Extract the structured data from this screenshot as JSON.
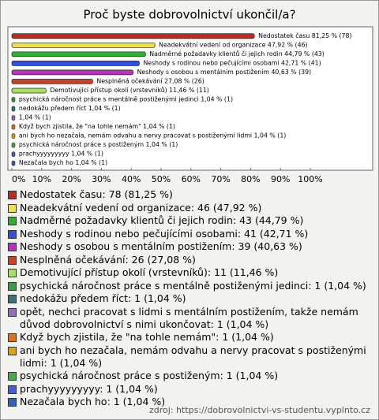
{
  "chart_data": {
    "type": "barh",
    "title": "Proč byste dobrovolnictví ukončil/a?",
    "values": [
      81.25,
      47.92,
      44.79,
      42.71,
      40.63,
      27.08,
      11.46,
      1.04,
      1.04,
      1.04,
      1.04,
      1.04,
      1.04,
      1.04,
      1.04
    ],
    "value_labels": [
      "Nedostatek času 81,25 % (78)",
      "Neadekvátní vedení od organizace 47,92 % (46)",
      "Nadměrné požadavky klientů či jejich rodin 44,79 % (43)",
      "Neshody s rodinou nebo pečujícími osobami 42,71 % (41)",
      "Neshody s osobou s mentálním postižením 40,63 % (39)",
      "Nesplněná očekávání 27,08 % (26)",
      "Demotivující přístup okolí (vrstevníků) 11,46 % (11)",
      "psychická náročnost práce s mentálně postiženými jedinci 1,04 % (1)",
      "nedokážu předem říct 1,04 % (1)",
      "1,04 % (1)",
      "Když bych zjistila, že \"na tohle nemám\" 1,04 % (1)",
      "ani bych ho nezačala, nemám odvahu a nervy pracovat s postiženými lidmi 1,04 % (1)",
      "psychická náročnost práce s postiženým 1,04 % (1)",
      "prachyyyyyyyyy 1,04 % (1)",
      "Nezačala bych ho 1,04 % (1)"
    ],
    "legend_labels": [
      "Nedostatek času: 78 (81,25 %)",
      "Neadekvátní vedení od organizace: 46 (47,92 %)",
      "Nadměrné požadavky klientů či jejich rodin: 43 (44,79 %)",
      "Neshody s rodinou nebo pečujícími osobami: 41 (42,71 %)",
      "Neshody s osobou s mentálním postižením: 39 (40,63 %)",
      "Nesplněná očekávání: 26 (27,08 %)",
      "Demotivující přístup okolí (vrstevníků): 11 (11,46 %)",
      "psychická náročnost práce s mentálně postiženými jedinci: 1 (1,04 %)",
      "nedokážu předem říct: 1 (1,04 %)",
      "opět, nechci pracovat s lidmi s mentálním postižením, takže nemám důvod dobrovolnictví s nimi ukončovat: 1 (1,04 %)",
      "Když bych zjistila, že \"na tohle nemám\": 1 (1,04 %)",
      "ani bych ho nezačala, nemám odvahu a nervy pracovat s postiženými lidmi: 1 (1,04 %)",
      "psychická náročnost práce s postiženým: 1 (1,04 %)",
      "prachyyyyyyyyy: 1 (1,04 %)",
      "Nezačala bych ho: 1 (1,04 %)"
    ],
    "colors": [
      "#c8281e",
      "#f0e040",
      "#30b030",
      "#3050e0",
      "#c030c0",
      "#d04020",
      "#a8e060",
      "#30a040",
      "#307880",
      "#9868c0",
      "#e07020",
      "#d8a800",
      "#40b040",
      "#4060d8",
      "#3060c0"
    ],
    "xlim": [
      0,
      100
    ],
    "xticks": [
      {
        "value": 0,
        "label": "0%"
      },
      {
        "value": 10,
        "label": "10%"
      },
      {
        "value": 20,
        "label": "20%"
      },
      {
        "value": 30,
        "label": "30%"
      },
      {
        "value": 40,
        "label": "40%"
      },
      {
        "value": 50,
        "label": "50%"
      },
      {
        "value": 60,
        "label": "60%"
      },
      {
        "value": 70,
        "label": "70%"
      },
      {
        "value": 80,
        "label": "80%"
      },
      {
        "value": 90,
        "label": "90%"
      },
      {
        "value": 100,
        "label": "100%"
      }
    ],
    "source": "zdroj: https://dobrovolnictvi-vs-studentu.vyplnto.cz"
  }
}
